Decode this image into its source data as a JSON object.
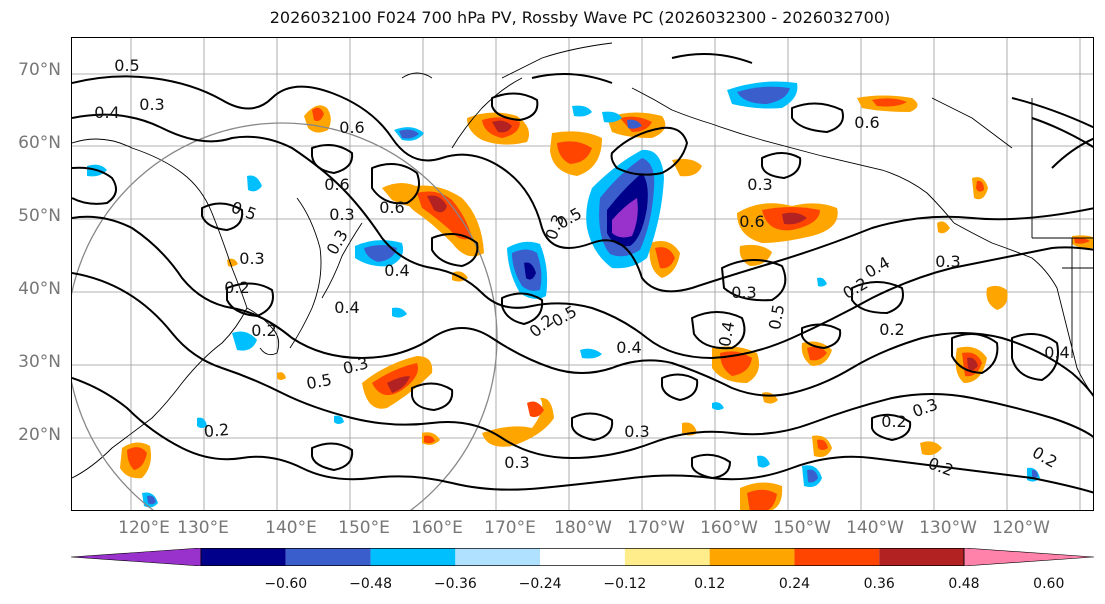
{
  "title": "2026032100 F024 700 hPa PV, Rossby Wave PC (2026032300 - 2026032700)",
  "lat_labels": [
    "70°N",
    "60°N",
    "50°N",
    "40°N",
    "30°N",
    "20°N"
  ],
  "lon_labels": [
    "120°E",
    "130°E",
    "140°E",
    "150°E",
    "160°E",
    "170°E",
    "180°W",
    "170°W",
    "160°W",
    "150°W",
    "140°W",
    "130°W",
    "120°W"
  ],
  "colorbar": {
    "ticks": [
      "−0.60",
      "−0.48",
      "−0.36",
      "−0.24",
      "−0.12",
      "0.12",
      "0.24",
      "0.36",
      "0.48",
      "0.60"
    ],
    "colors": [
      "#9932cc",
      "#00008b",
      "#3a5fcd",
      "#00bfff",
      "#b0e2ff",
      "#ffffff",
      "#ffec8b",
      "#ffa500",
      "#ff4500",
      "#b22222",
      "#ff82ab"
    ]
  },
  "contour_labels": [
    {
      "text": "0.5"
    },
    {
      "text": "0.4"
    },
    {
      "text": "0.3"
    },
    {
      "text": "0.6"
    },
    {
      "text": "0.5"
    },
    {
      "text": "0.3"
    },
    {
      "text": "0.6"
    },
    {
      "text": "0.3"
    },
    {
      "text": "0.4"
    },
    {
      "text": "0.2"
    },
    {
      "text": "0.6"
    },
    {
      "text": "0.5"
    },
    {
      "text": "0.2"
    },
    {
      "text": "0.3"
    },
    {
      "text": "0.5"
    },
    {
      "text": "0.4"
    },
    {
      "text": "0.2"
    },
    {
      "text": "0.3"
    },
    {
      "text": "0.2"
    },
    {
      "text": "0.4"
    },
    {
      "text": "0.3"
    },
    {
      "text": "0.5"
    },
    {
      "text": "0.6"
    },
    {
      "text": "0.3"
    },
    {
      "text": "0.6"
    },
    {
      "text": "0.4"
    },
    {
      "text": "0.3"
    },
    {
      "text": "0.5"
    },
    {
      "text": "0.2"
    },
    {
      "text": "0.4"
    },
    {
      "text": "0.3"
    },
    {
      "text": "0.2"
    },
    {
      "text": "0.2"
    },
    {
      "text": "0.3"
    },
    {
      "text": "0.2"
    },
    {
      "text": "0.3"
    },
    {
      "text": "0.2"
    },
    {
      "text": "0.4"
    },
    {
      "text": "0.3"
    }
  ]
}
